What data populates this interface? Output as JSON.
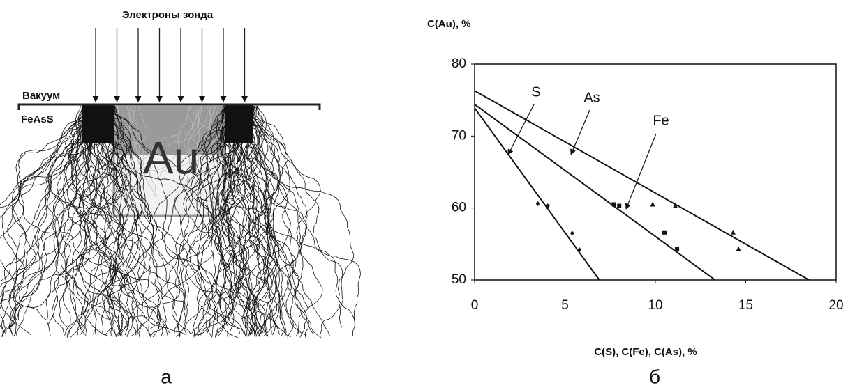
{
  "panel_a": {
    "title": "Электроны зонда",
    "vacuum_label": "Вакуум",
    "sample_label": "FeAsS",
    "inclusion_label": "Au",
    "panel_label": "а"
  },
  "chart_data": {
    "type": "scatter",
    "y_label": "C(Au), %",
    "x_label": "C(S), C(Fe), C(As), %",
    "panel_label": "б",
    "xlim": [
      0,
      20
    ],
    "ylim": [
      50,
      80
    ],
    "xticks": [
      0,
      5,
      10,
      15,
      20
    ],
    "yticks": [
      50,
      60,
      70,
      80
    ],
    "grid": false,
    "series": [
      {
        "name": "S",
        "marker": "diamond",
        "color": "#111111",
        "x": [
          3.5,
          4.05,
          5.4,
          5.8
        ],
        "values": [
          60.6,
          60.3,
          56.5,
          54.2
        ],
        "fit_x": [
          0,
          6.9
        ],
        "fit_values": [
          73.9,
          50
        ]
      },
      {
        "name": "As",
        "marker": "triangle",
        "color": "#111111",
        "x": [
          9.85,
          11.1,
          14.3,
          14.6
        ],
        "values": [
          60.5,
          60.3,
          56.6,
          54.3
        ],
        "fit_x": [
          0,
          18.5
        ],
        "fit_values": [
          76.3,
          50
        ]
      },
      {
        "name": "Fe",
        "marker": "square",
        "color": "#111111",
        "x": [
          7.7,
          8.0,
          10.5,
          11.2
        ],
        "values": [
          60.5,
          60.3,
          56.6,
          54.3
        ],
        "fit_x": [
          0,
          13.3
        ],
        "fit_values": [
          74.4,
          50
        ]
      }
    ]
  }
}
